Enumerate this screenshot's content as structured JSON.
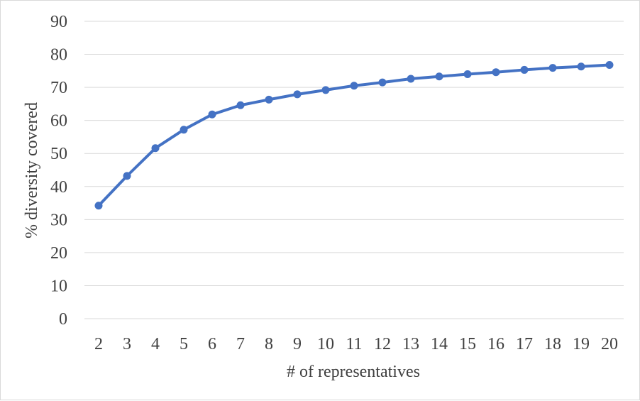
{
  "chart_data": {
    "type": "line",
    "title": "",
    "xlabel": "# of representatives",
    "ylabel": "% diversity covered",
    "categories": [
      "2",
      "3",
      "4",
      "5",
      "6",
      "7",
      "8",
      "9",
      "10",
      "11",
      "12",
      "13",
      "14",
      "15",
      "16",
      "17",
      "18",
      "19",
      "20"
    ],
    "series": [
      {
        "values": [
          34.2,
          43.2,
          51.6,
          57.2,
          61.8,
          64.6,
          66.3,
          67.9,
          69.2,
          70.5,
          71.5,
          72.6,
          73.3,
          74.0,
          74.6,
          75.3,
          75.9,
          76.3,
          76.8
        ]
      }
    ],
    "ylim": [
      0,
      90
    ],
    "yticks": [
      "0",
      "10",
      "20",
      "30",
      "40",
      "50",
      "60",
      "70",
      "80",
      "90"
    ],
    "grid": "horizontal",
    "legend": "none",
    "colors": {
      "series": "#4472C4",
      "grid": "#d9d9d9",
      "text": "#404040"
    }
  }
}
